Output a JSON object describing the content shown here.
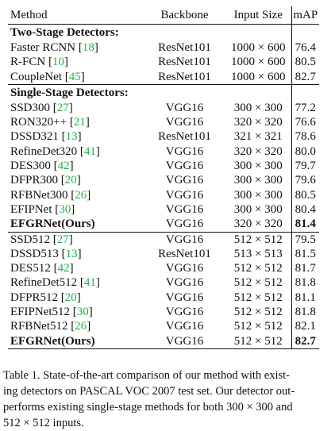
{
  "table": {
    "headers": {
      "method": "Method",
      "backbone": "Backbone",
      "input_size": "Input Size",
      "map": "mAP"
    },
    "two_stage": {
      "title": "Two-Stage Detectors:",
      "rows": [
        {
          "name": "Faster RCNN",
          "ref": "18",
          "backbone": "ResNet101",
          "input": "1000 × 600",
          "map": "76.4"
        },
        {
          "name": "R-FCN",
          "ref": "10",
          "backbone": "ResNet101",
          "input": "1000 × 600",
          "map": "80.5"
        },
        {
          "name": "CoupleNet",
          "ref": "45",
          "backbone": "ResNet101",
          "input": "1000 × 600",
          "map": "82.7"
        }
      ]
    },
    "single_stage": {
      "title": "Single-Stage Detectors:",
      "rows_300": [
        {
          "name": "SSD300",
          "ref": "27",
          "backbone": "VGG16",
          "input": "300 × 300",
          "map": "77.2"
        },
        {
          "name": "RON320++",
          "ref": "21",
          "backbone": "VGG16",
          "input": "320 × 320",
          "map": "76.6"
        },
        {
          "name": "DSSD321",
          "ref": "13",
          "backbone": "ResNet101",
          "input": "321 × 321",
          "map": "78.6"
        },
        {
          "name": "RefineDet320",
          "ref": "41",
          "backbone": "VGG16",
          "input": "320 × 320",
          "map": "80.0"
        },
        {
          "name": "DES300",
          "ref": "42",
          "backbone": "VGG16",
          "input": "300 × 300",
          "map": "79.7"
        },
        {
          "name": "DFPR300",
          "ref": "20",
          "backbone": "VGG16",
          "input": "300 × 300",
          "map": "79.6"
        },
        {
          "name": "RFBNet300",
          "ref": "26",
          "backbone": "VGG16",
          "input": "300 × 300",
          "map": "80.5"
        },
        {
          "name": "EFIPNet",
          "ref": "30",
          "backbone": "VGG16",
          "input": "300 × 300",
          "map": "80.4"
        },
        {
          "name": "EFGRNet(Ours)",
          "ref": "",
          "backbone": "VGG16",
          "input": "320 × 320",
          "map": "81.4"
        }
      ],
      "rows_512": [
        {
          "name": "SSD512",
          "ref": "27",
          "backbone": "VGG16",
          "input": "512 × 512",
          "map": "79.5"
        },
        {
          "name": "DSSD513",
          "ref": "13",
          "backbone": "ResNet101",
          "input": "513 × 513",
          "map": "81.5"
        },
        {
          "name": "DES512",
          "ref": "42",
          "backbone": "VGG16",
          "input": "512 × 512",
          "map": "81.7"
        },
        {
          "name": "RefineDet512",
          "ref": "41",
          "backbone": "VGG16",
          "input": "512 × 512",
          "map": "81.8"
        },
        {
          "name": "DFPR512",
          "ref": "20",
          "backbone": "VGG16",
          "input": "512 × 512",
          "map": "81.1"
        },
        {
          "name": "EFIPNet512",
          "ref": "30",
          "backbone": "VGG16",
          "input": "512 × 512",
          "map": "81.8"
        },
        {
          "name": "RFBNet512",
          "ref": "26",
          "backbone": "VGG16",
          "input": "512 × 512",
          "map": "82.1"
        },
        {
          "name": "EFGRNet(Ours)",
          "ref": "",
          "backbone": "VGG16",
          "input": "512 × 512",
          "map": "82.7"
        }
      ]
    }
  },
  "caption": {
    "line1": "Table 1. State-of-the-art comparison of our method with exist-",
    "line2": "ing detectors on PASCAL VOC 2007 test set. Our detector out-",
    "line3": "performs existing single-stage methods for both 300 × 300 and",
    "line4": "512 × 512 inputs."
  },
  "colors": {
    "text": "#111111",
    "citation": "#22b14c"
  }
}
